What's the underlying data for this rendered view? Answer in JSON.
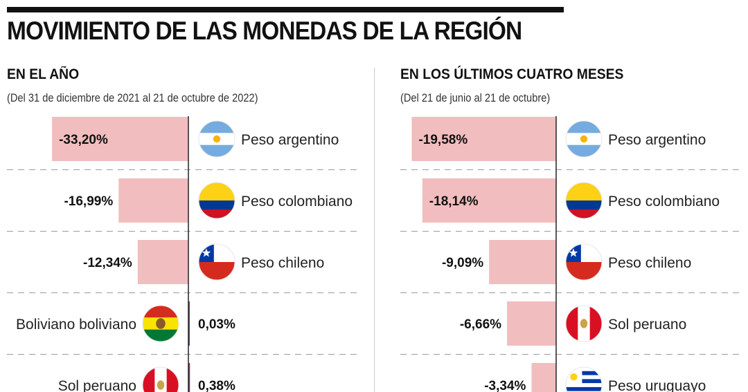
{
  "title": "MOVIMIENTO DE LAS MONEDAS DE LA REGIÓN",
  "colors": {
    "bar_negative": "#f2bdbe",
    "bar_positive": "#7a3c6a",
    "axis": "#222222",
    "divider": "#9a9a9a"
  },
  "chart_data": [
    {
      "type": "bar",
      "orientation": "horizontal",
      "title": "EN EL AÑO",
      "subtitle": "(Del 31 de diciembre de 2021 al 21 de octubre de 2022)",
      "categories": [
        "Peso argentino",
        "Peso colombiano",
        "Peso chileno",
        "Boliviano boliviano",
        "Sol peruano"
      ],
      "values": [
        -33.2,
        -16.99,
        -12.34,
        0.03,
        0.38
      ],
      "value_labels": [
        "-33,20%",
        "-16,99%",
        "-12,34%",
        "0,03%",
        "0,38%"
      ],
      "flags": [
        "argentina-flag-icon",
        "colombia-flag-icon",
        "chile-flag-icon",
        "bolivia-flag-icon",
        "peru-flag-icon"
      ],
      "unit": "%"
    },
    {
      "type": "bar",
      "orientation": "horizontal",
      "title": "EN LOS ÚLTIMOS CUATRO MESES",
      "subtitle": "(Del 21 de junio al 21 de octubre)",
      "categories": [
        "Peso argentino",
        "Peso colombiano",
        "Peso chileno",
        "Sol peruano",
        "Peso uruguayo"
      ],
      "values": [
        -19.58,
        -18.14,
        -9.09,
        -6.66,
        -3.34
      ],
      "value_labels": [
        "-19,58%",
        "-18,14%",
        "-9,09%",
        "-6,66%",
        "-3,34%"
      ],
      "flags": [
        "argentina-flag-icon",
        "colombia-flag-icon",
        "chile-flag-icon",
        "peru-flag-icon",
        "uruguay-flag-icon"
      ],
      "unit": "%"
    }
  ]
}
